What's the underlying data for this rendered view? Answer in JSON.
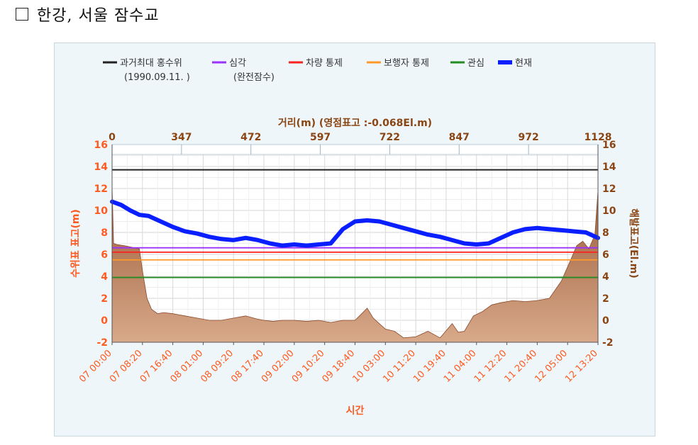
{
  "heading": {
    "checkbox_glyph": "checkbox-icon",
    "text": "한강, 서울 잠수교"
  },
  "chart_data": {
    "type": "line",
    "title": "",
    "colors": {
      "max_flood": "#222222",
      "severe": "#9b30ff",
      "vehicle": "#ff2020",
      "pedestrian": "#ff9a2a",
      "attention": "#228b22",
      "current": "#0a1fff",
      "terrain": "#b06c45",
      "orange_axis": "#ff5a1f",
      "brown_axis": "#8b4513"
    },
    "legend": [
      {
        "name": "과거최대 홍수위",
        "sub": "(1990.09.11. )",
        "color": "#222222"
      },
      {
        "name": "심각",
        "sub": "(완전잠수)",
        "color": "#9b30ff"
      },
      {
        "name": "차량 통제",
        "sub": "",
        "color": "#ff2020"
      },
      {
        "name": "보행자 통제",
        "sub": "",
        "color": "#ff9a2a"
      },
      {
        "name": "관심",
        "sub": "",
        "color": "#228b22"
      },
      {
        "name": "현재",
        "sub": "",
        "color": "#0a1fff"
      }
    ],
    "top_axis_title": "거리(m) (영점표고 :-0.068El.m)",
    "top_ticks": [
      "0",
      "347",
      "472",
      "597",
      "722",
      "847",
      "972",
      "1128"
    ],
    "y_ticks": [
      -2,
      0,
      2,
      4,
      6,
      8,
      10,
      12,
      14,
      16
    ],
    "ylim": [
      -2,
      16
    ],
    "ylabel_left": "수위표 표고(m)",
    "ylabel_right": "해발표고(El.m)",
    "xlabel": "시간",
    "time_ticks": [
      "07 00:00",
      "07 08:20",
      "07 16:40",
      "08 01:00",
      "08 09:20",
      "08 17:40",
      "09 02:00",
      "09 10:20",
      "09 18:40",
      "10 03:00",
      "10 11:20",
      "10 19:40",
      "11 04:00",
      "11 12:20",
      "11 20:40",
      "12 05:00",
      "12 13:20"
    ],
    "thresholds": [
      {
        "key": "max_flood",
        "value": 13.7
      },
      {
        "key": "severe",
        "value": 6.6
      },
      {
        "key": "vehicle",
        "value": 6.2
      },
      {
        "key": "pedestrian",
        "value": 5.5
      },
      {
        "key": "attention",
        "value": 3.9
      }
    ],
    "current_series": {
      "x": [
        0,
        0.3,
        0.6,
        0.9,
        1.2,
        1.6,
        2,
        2.4,
        2.8,
        3.2,
        3.6,
        4,
        4.4,
        4.8,
        5.2,
        5.6,
        6,
        6.4,
        6.8,
        7.2,
        7.6,
        8,
        8.4,
        8.8,
        9.2,
        9.6,
        10,
        10.4,
        10.8,
        11.2,
        11.6,
        12,
        12.4,
        12.8,
        13.2,
        13.6,
        14,
        14.4,
        14.8,
        15.2,
        15.6,
        16
      ],
      "y": [
        10.8,
        10.5,
        10.0,
        9.6,
        9.5,
        9.0,
        8.5,
        8.1,
        7.9,
        7.6,
        7.4,
        7.3,
        7.5,
        7.3,
        7.0,
        6.8,
        6.9,
        6.8,
        6.9,
        7.0,
        8.3,
        9.0,
        9.1,
        9.0,
        8.7,
        8.4,
        8.1,
        7.8,
        7.6,
        7.3,
        7.0,
        6.9,
        7.0,
        7.5,
        8.0,
        8.3,
        8.4,
        8.3,
        8.2,
        8.1,
        8.0,
        7.5
      ]
    },
    "terrain_series": {
      "x": [
        0,
        0.05,
        0.15,
        0.4,
        0.9,
        1.0,
        1.15,
        1.3,
        1.5,
        1.7,
        2.0,
        2.4,
        2.8,
        3.2,
        3.6,
        4.0,
        4.4,
        4.8,
        5.0,
        5.3,
        5.6,
        6.0,
        6.4,
        6.8,
        7.2,
        7.6,
        8.0,
        8.4,
        8.6,
        8.8,
        9.0,
        9.3,
        9.6,
        10.0,
        10.4,
        10.8,
        11.2,
        11.4,
        11.6,
        11.9,
        12.2,
        12.5,
        12.8,
        13.2,
        13.6,
        14.0,
        14.4,
        14.8,
        15.1,
        15.3,
        15.5,
        15.7,
        15.9,
        16
      ],
      "y": [
        12.2,
        7.0,
        6.9,
        6.8,
        6.5,
        4.5,
        2.0,
        1.0,
        0.6,
        0.7,
        0.6,
        0.4,
        0.2,
        0.0,
        0.0,
        0.2,
        0.4,
        0.1,
        0.0,
        -0.1,
        0.0,
        0.0,
        -0.1,
        0.0,
        -0.2,
        0.0,
        0.0,
        1.1,
        0.2,
        -0.3,
        -0.8,
        -1.0,
        -1.6,
        -1.5,
        -1.0,
        -1.6,
        -0.3,
        -1.1,
        -1.0,
        0.4,
        0.8,
        1.4,
        1.6,
        1.8,
        1.7,
        1.8,
        2.0,
        3.6,
        5.5,
        6.8,
        7.2,
        6.5,
        7.8,
        11.8
      ]
    }
  }
}
